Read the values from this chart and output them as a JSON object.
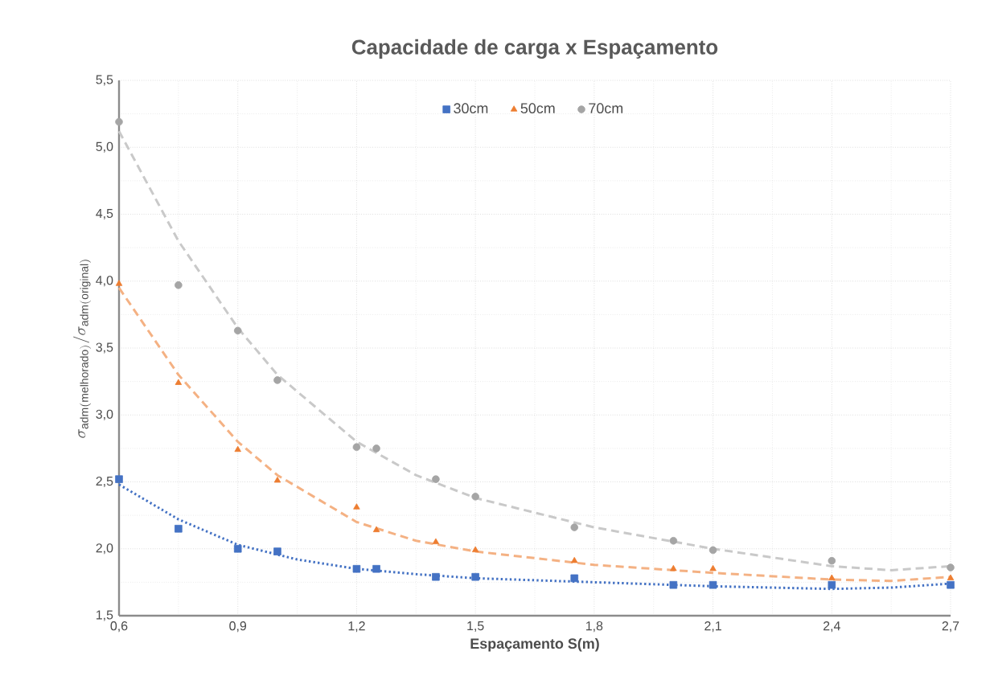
{
  "chart_data": {
    "type": "scatter",
    "title": "Capacidade de carga x Espaçamento",
    "xlabel": "Espaçamento S(m)",
    "ylabel": "\\sigma_{\\mathrm{adm(melhorado)}} / \\sigma_{\\mathrm{adm(original)}}",
    "xlim": [
      0.6,
      2.7
    ],
    "ylim": [
      1.5,
      5.5
    ],
    "xticks": [
      {
        "value": 0.6,
        "label": "0,6"
      },
      {
        "value": 0.9,
        "label": "0,9"
      },
      {
        "value": 1.2,
        "label": "1,2"
      },
      {
        "value": 1.5,
        "label": "1,5"
      },
      {
        "value": 1.8,
        "label": "1,8"
      },
      {
        "value": 2.1,
        "label": "2,1"
      },
      {
        "value": 2.4,
        "label": "2,4"
      },
      {
        "value": 2.7,
        "label": "2,7"
      }
    ],
    "yticks": [
      {
        "value": 1.5,
        "label": "1,5"
      },
      {
        "value": 2.0,
        "label": "2,0"
      },
      {
        "value": 2.5,
        "label": "2,5"
      },
      {
        "value": 3.0,
        "label": "3,0"
      },
      {
        "value": 3.5,
        "label": "3,5"
      },
      {
        "value": 4.0,
        "label": "4,0"
      },
      {
        "value": 4.5,
        "label": "4,5"
      },
      {
        "value": 5.0,
        "label": "5,0"
      },
      {
        "value": 5.5,
        "label": "5,5"
      }
    ],
    "grid": true,
    "legend": "top",
    "x": [
      0.6,
      0.75,
      0.9,
      1.0,
      1.2,
      1.25,
      1.4,
      1.5,
      1.75,
      2.0,
      2.1,
      2.4,
      2.7
    ],
    "series": [
      {
        "name": "30cm",
        "color": "#4472c4",
        "marker": "square",
        "values": [
          2.52,
          2.15,
          2.0,
          1.98,
          1.85,
          1.85,
          1.79,
          1.79,
          1.78,
          1.73,
          1.73,
          1.73,
          1.73
        ]
      },
      {
        "name": "50cm",
        "color": "#ed7d31",
        "marker": "triangle",
        "values": [
          3.98,
          3.24,
          2.74,
          2.51,
          2.31,
          2.14,
          2.05,
          1.99,
          1.91,
          1.85,
          1.85,
          1.78,
          1.78
        ]
      },
      {
        "name": "70cm",
        "color": "#a5a5a5",
        "marker": "circle",
        "values": [
          5.19,
          3.97,
          3.63,
          3.26,
          2.76,
          2.75,
          2.52,
          2.39,
          2.16,
          2.06,
          1.99,
          1.91,
          1.86
        ]
      },
      {
        "type": "line",
        "color": "#4472c4",
        "line_style": "dotted",
        "x": [
          0.6,
          0.75,
          0.9,
          1.05,
          1.2,
          1.35,
          1.5,
          1.8,
          2.1,
          2.4,
          2.55,
          2.7
        ],
        "values": [
          2.48,
          2.22,
          2.03,
          1.92,
          1.85,
          1.81,
          1.78,
          1.75,
          1.72,
          1.7,
          1.71,
          1.74
        ]
      },
      {
        "type": "line",
        "color": "#f4b183",
        "line_style": "dashed",
        "x": [
          0.6,
          0.75,
          0.9,
          1.0,
          1.2,
          1.35,
          1.5,
          1.8,
          2.1,
          2.4,
          2.55,
          2.7
        ],
        "values": [
          3.95,
          3.3,
          2.8,
          2.55,
          2.2,
          2.06,
          1.98,
          1.88,
          1.82,
          1.77,
          1.76,
          1.79
        ]
      },
      {
        "type": "line",
        "color": "#c9c9c9",
        "line_style": "dashed",
        "x": [
          0.6,
          0.75,
          0.9,
          1.0,
          1.2,
          1.35,
          1.5,
          1.8,
          2.1,
          2.4,
          2.55,
          2.7
        ],
        "values": [
          5.12,
          4.3,
          3.65,
          3.3,
          2.8,
          2.55,
          2.38,
          2.16,
          2.0,
          1.87,
          1.84,
          1.87
        ]
      }
    ]
  }
}
